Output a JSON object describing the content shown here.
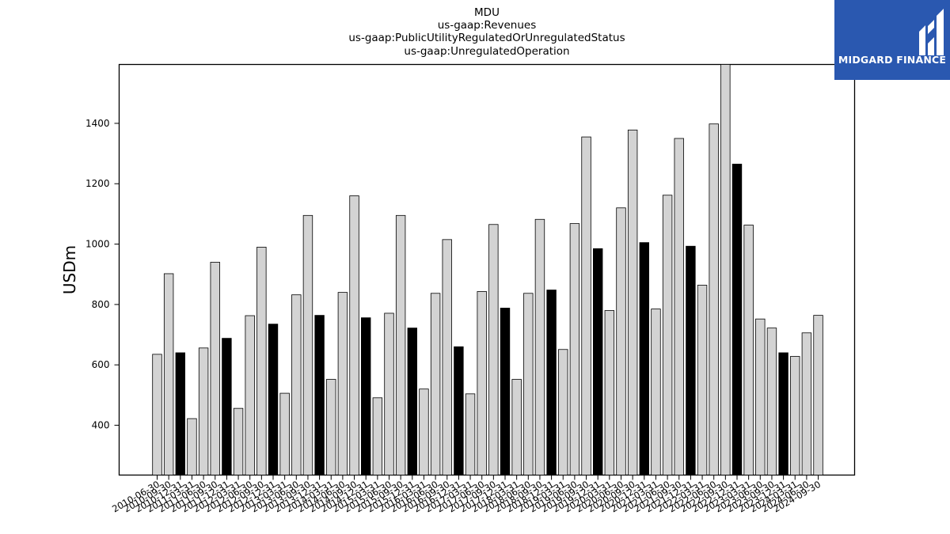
{
  "chart_data": {
    "type": "bar",
    "title_lines": [
      "MDU",
      "us-gaap:Revenues",
      "us-gaap:PublicUtilityRegulatedOrUnregulatedStatus",
      "us-gaap:UnregulatedOperation"
    ],
    "xlabel": "",
    "ylabel": "USDm",
    "ylim": [
      235,
      1595
    ],
    "yticks": [
      400,
      600,
      800,
      1000,
      1200,
      1400
    ],
    "grid": false,
    "colors": {
      "quarter": "#d3d3d3",
      "annual": "#000000",
      "edge": "#000000"
    },
    "categories": [
      "2010-06-30",
      "2010-09-30",
      "2010-12-31",
      "2011-03-31",
      "2011-06-30",
      "2011-09-30",
      "2011-12-31",
      "2012-03-31",
      "2012-06-30",
      "2012-09-30",
      "2012-12-31",
      "2013-03-31",
      "2013-06-30",
      "2013-09-30",
      "2013-12-31",
      "2014-03-31",
      "2014-06-30",
      "2014-09-30",
      "2014-12-31",
      "2015-03-31",
      "2015-06-30",
      "2015-09-30",
      "2015-12-31",
      "2016-03-31",
      "2016-06-30",
      "2016-09-30",
      "2016-12-31",
      "2017-03-31",
      "2017-06-30",
      "2017-09-30",
      "2017-12-31",
      "2018-03-31",
      "2018-06-30",
      "2018-09-30",
      "2018-12-31",
      "2019-03-31",
      "2019-06-30",
      "2019-09-30",
      "2019-12-31",
      "2020-03-31",
      "2020-06-30",
      "2020-09-30",
      "2020-12-31",
      "2021-03-31",
      "2021-06-30",
      "2021-09-30",
      "2021-12-31",
      "2022-03-31",
      "2022-06-30",
      "2022-09-30",
      "2022-12-31",
      "2023-03-31",
      "2023-06-30",
      "2023-09-30",
      "2023-12-31",
      "2024-03-31",
      "2024-06-30",
      "2024-09-30"
    ],
    "values": [
      635,
      902,
      640,
      422,
      656,
      940,
      688,
      456,
      763,
      990,
      735,
      506,
      832,
      1095,
      764,
      552,
      840,
      1160,
      756,
      491,
      771,
      1095,
      722,
      520,
      837,
      1015,
      660,
      504,
      843,
      1065,
      788,
      552,
      837,
      1082,
      848,
      651,
      1068,
      1355,
      985,
      780,
      1120,
      1378,
      1005,
      785,
      1162,
      1350,
      993,
      864,
      1398,
      1598,
      1265,
      1063,
      752,
      722,
      640,
      628,
      706,
      764
    ],
    "annual_flags": [
      0,
      0,
      1,
      0,
      0,
      0,
      1,
      0,
      0,
      0,
      1,
      0,
      0,
      0,
      1,
      0,
      0,
      0,
      1,
      0,
      0,
      0,
      1,
      0,
      0,
      0,
      1,
      0,
      0,
      0,
      1,
      0,
      0,
      0,
      1,
      0,
      0,
      0,
      1,
      0,
      0,
      0,
      1,
      0,
      0,
      0,
      1,
      0,
      0,
      0,
      1,
      0,
      0,
      0,
      1,
      0,
      0,
      0
    ]
  },
  "logo": {
    "text": "MIDGARD FINANCE",
    "icon": "midgard-m-logo-icon",
    "background": "#2a58b0"
  }
}
